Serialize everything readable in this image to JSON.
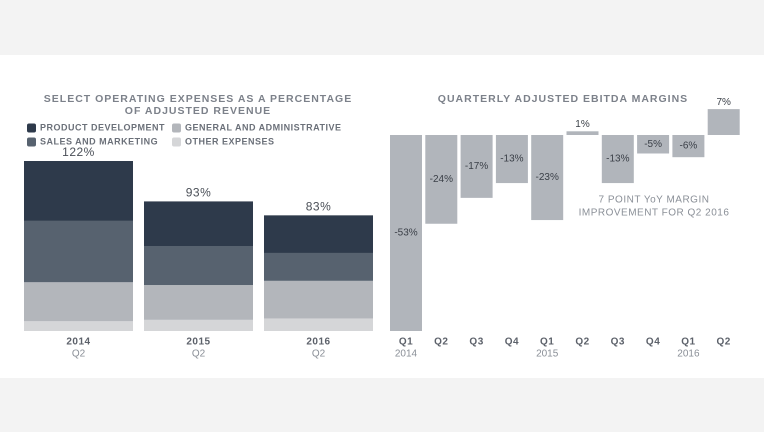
{
  "charts": [
    {
      "type": "stacked-bar",
      "title_lines": [
        "SELECT OPERATING EXPENSES AS A PERCENTAGE",
        "OF ADJUSTED REVENUE"
      ],
      "categories": [
        "2014",
        "2015",
        "2016"
      ],
      "sublabels": [
        "Q2",
        "Q2",
        "Q2"
      ],
      "totals": [
        122,
        93,
        83
      ],
      "total_labels": [
        "122%",
        "93%",
        "83%"
      ],
      "series": [
        {
          "name": "OTHER EXPENSES",
          "color": "#d5d6d8",
          "values": [
            7,
            8,
            9
          ]
        },
        {
          "name": "GENERAL AND ADMINISTRATIVE",
          "color": "#b3b6bb",
          "values": [
            28,
            25,
            27
          ]
        },
        {
          "name": "SALES AND MARKETING",
          "color": "#57626f",
          "values": [
            44,
            28,
            20
          ]
        },
        {
          "name": "PRODUCT DEVELOPMENT",
          "color": "#2e3a4b",
          "values": [
            43,
            32,
            27
          ]
        }
      ]
    },
    {
      "type": "bar",
      "title_lines": [
        "QUARTERLY ADJUSTED EBITDA MARGINS"
      ],
      "categories": [
        "Q1",
        "Q2",
        "Q3",
        "Q4",
        "Q1",
        "Q2",
        "Q3",
        "Q4",
        "Q1",
        "Q2"
      ],
      "sublabels": [
        "2014",
        null,
        null,
        null,
        "2015",
        null,
        null,
        null,
        "2016",
        null
      ],
      "values": [
        -53,
        -24,
        -17,
        -13,
        -23,
        1,
        -13,
        -5,
        -6,
        7
      ],
      "value_labels": [
        "-53%",
        "-24%",
        "-17%",
        "-13%",
        "-23%",
        "1%",
        "-13%",
        "-5%",
        "-6%",
        "7%"
      ],
      "color": "#b1b5bb",
      "annotation_lines": [
        "7 POINT YoY MARGIN",
        "IMPROVEMENT FOR Q2 2016"
      ]
    }
  ]
}
